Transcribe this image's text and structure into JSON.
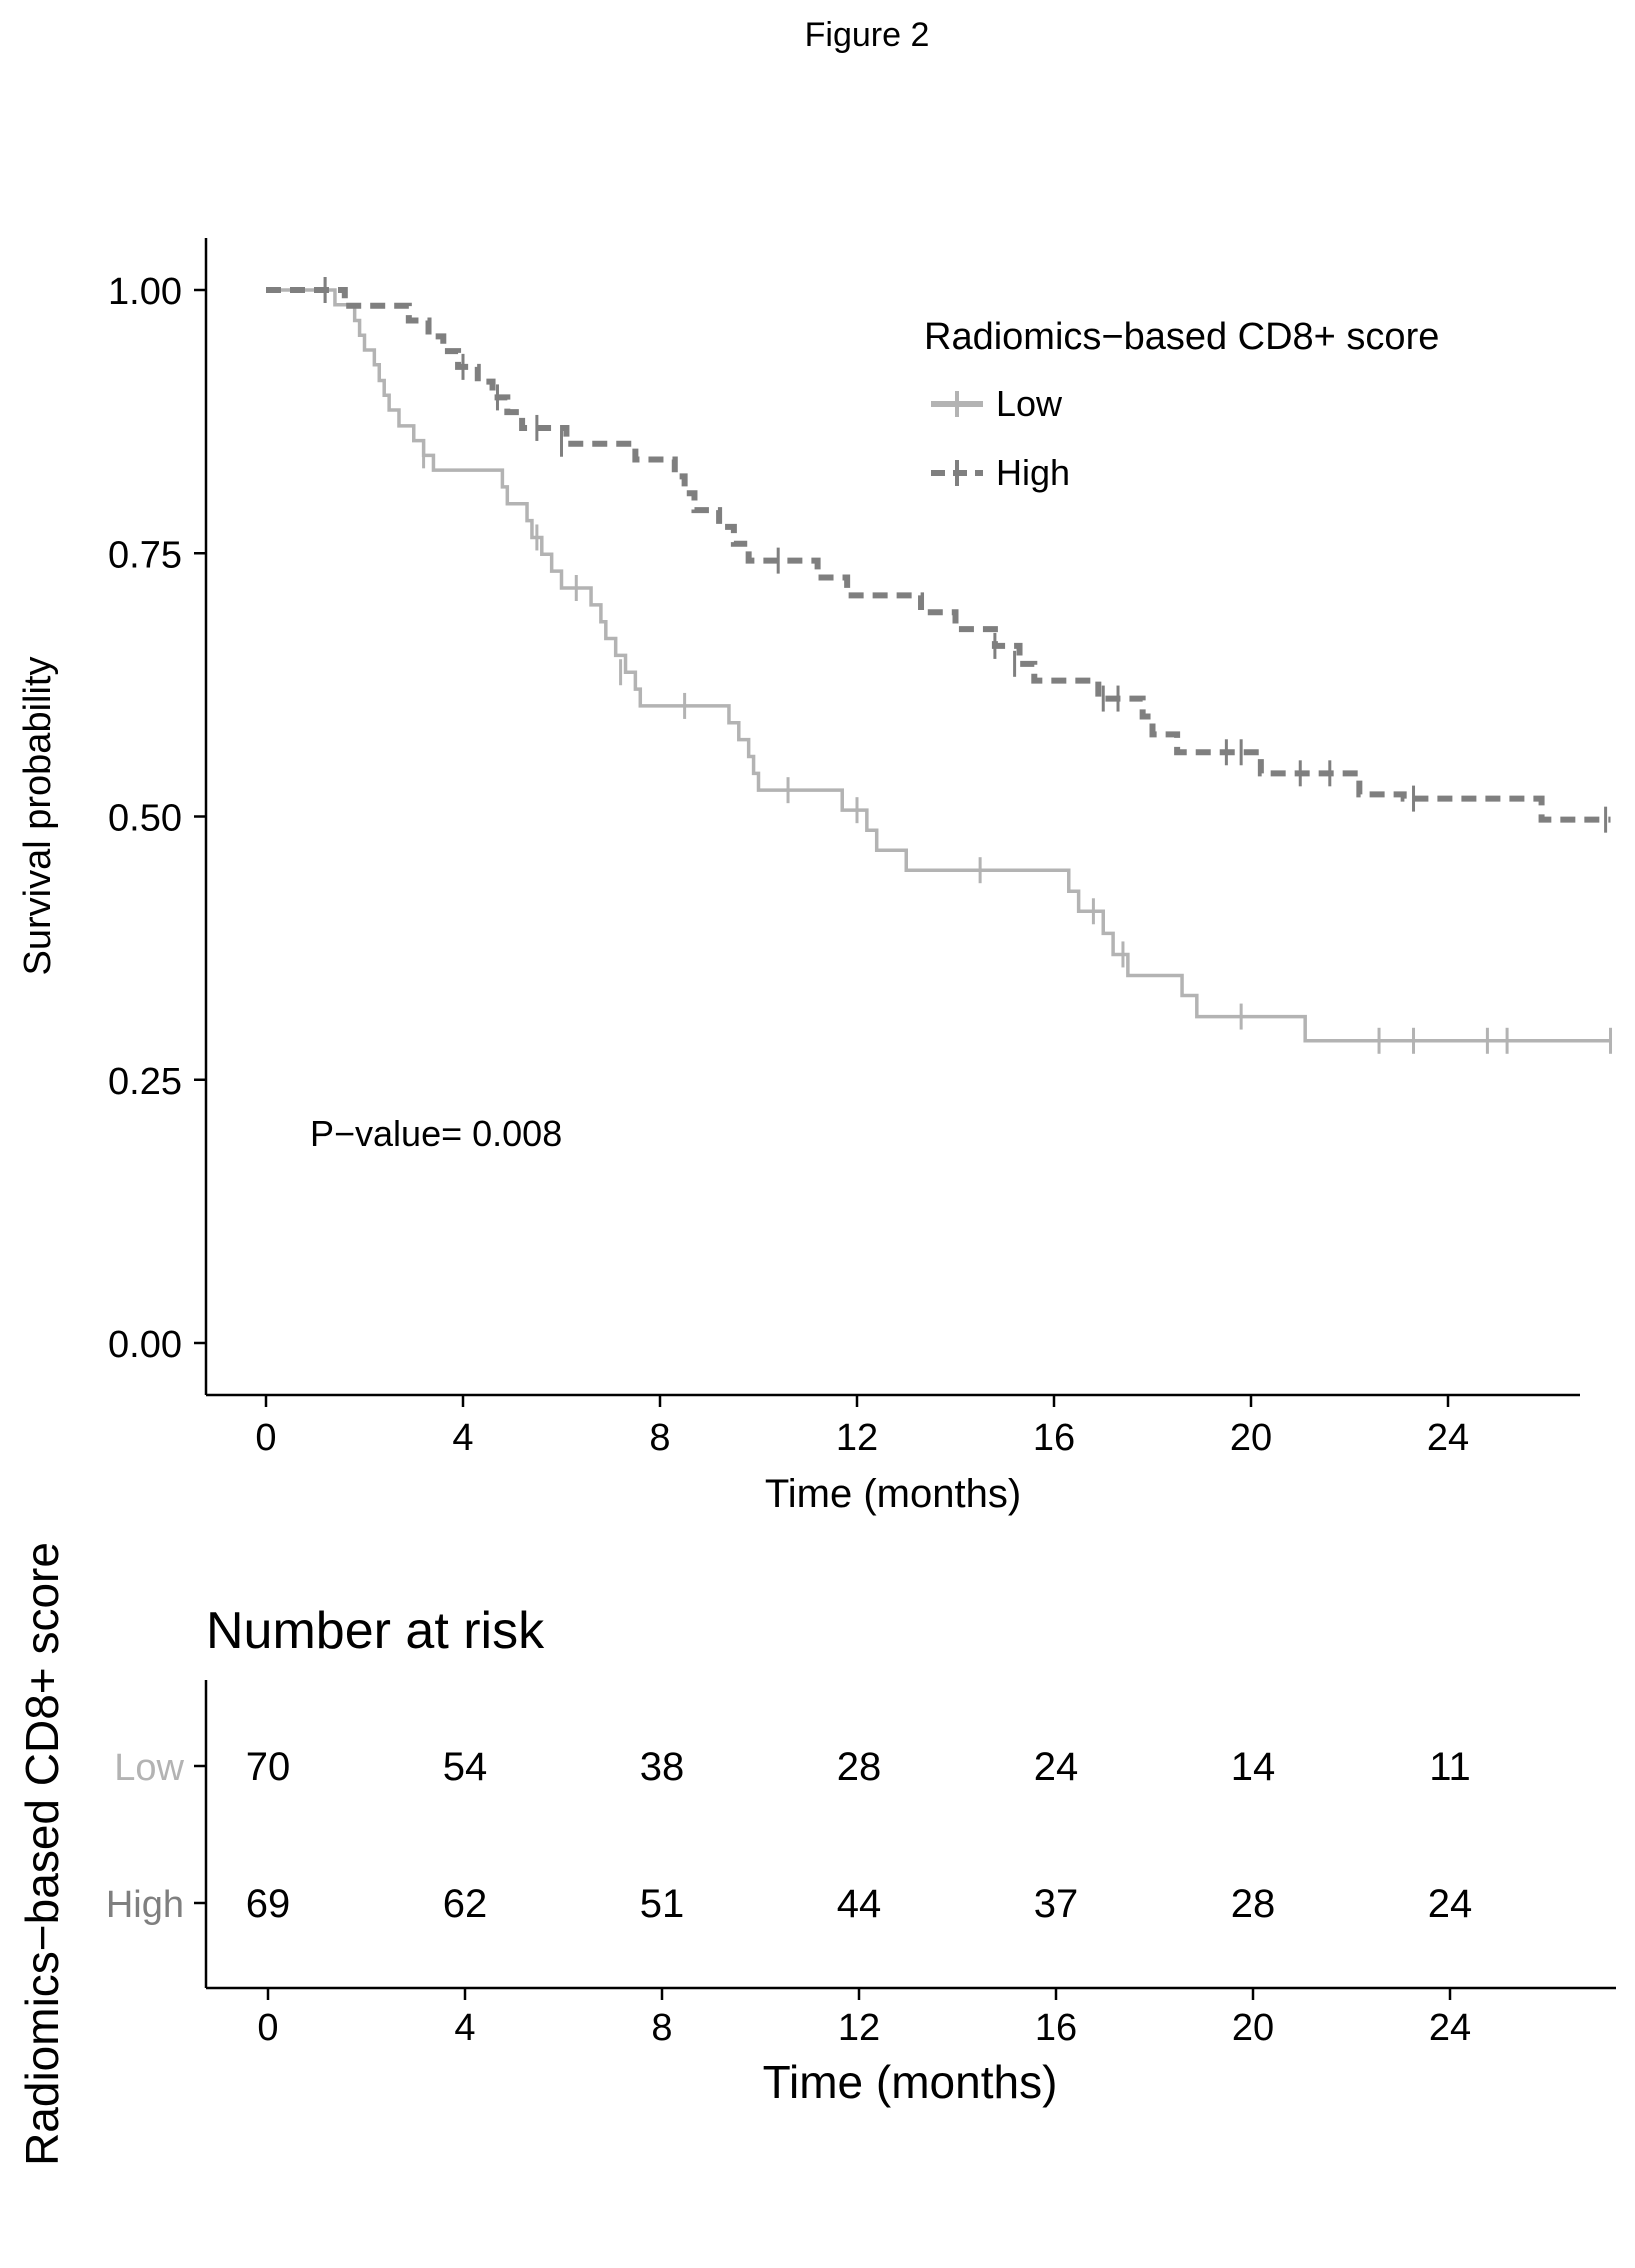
{
  "figure_label": "Figure 2",
  "colors": {
    "low": "#b3b3b3",
    "high": "#7f7f7f",
    "axis": "#000000",
    "text": "#000000"
  },
  "annotation": "P−value= 0.008",
  "risk_table": {
    "title": "Number at risk",
    "ylabel": "Radiomics−based CD8+ score",
    "xlabel": "Time (months)",
    "groups": [
      "Low",
      "High"
    ],
    "times": [
      0,
      4,
      8,
      12,
      16,
      20,
      24
    ],
    "rows": [
      {
        "group": "Low",
        "counts": [
          70,
          54,
          38,
          28,
          24,
          14,
          11
        ]
      },
      {
        "group": "High",
        "counts": [
          69,
          62,
          51,
          44,
          37,
          28,
          24
        ]
      }
    ]
  },
  "chart_data": {
    "type": "line",
    "xlabel": "Time (months)",
    "ylabel": "Survival probability",
    "xlim": [
      -1.3,
      27.3
    ],
    "ylim": [
      -0.05,
      1.05
    ],
    "xticks": [
      0,
      4,
      8,
      12,
      16,
      20,
      24
    ],
    "yticks": [
      0.0,
      0.25,
      0.5,
      0.75,
      1.0
    ],
    "ytick_labels": [
      "0.00",
      "0.25",
      "0.50",
      "0.75",
      "1.00"
    ],
    "grid": false,
    "legend": {
      "title": "Radiomics−based CD8+ score",
      "position": "top-right",
      "entries": [
        "Low",
        "High"
      ]
    },
    "series": [
      {
        "name": "Low",
        "line_style": "solid",
        "steps": [
          [
            0,
            1.0
          ],
          [
            1.4,
            0.986
          ],
          [
            1.8,
            0.971
          ],
          [
            1.9,
            0.957
          ],
          [
            2.0,
            0.943
          ],
          [
            2.2,
            0.929
          ],
          [
            2.3,
            0.914
          ],
          [
            2.4,
            0.9
          ],
          [
            2.5,
            0.886
          ],
          [
            2.7,
            0.871
          ],
          [
            3.0,
            0.857
          ],
          [
            3.2,
            0.843
          ],
          [
            3.4,
            0.829
          ],
          [
            4.8,
            0.813
          ],
          [
            4.9,
            0.797
          ],
          [
            5.3,
            0.781
          ],
          [
            5.4,
            0.765
          ],
          [
            5.6,
            0.749
          ],
          [
            5.8,
            0.733
          ],
          [
            6.0,
            0.717
          ],
          [
            6.6,
            0.701
          ],
          [
            6.8,
            0.685
          ],
          [
            6.9,
            0.669
          ],
          [
            7.1,
            0.653
          ],
          [
            7.3,
            0.637
          ],
          [
            7.5,
            0.621
          ],
          [
            7.6,
            0.605
          ],
          [
            9.4,
            0.589
          ],
          [
            9.6,
            0.573
          ],
          [
            9.8,
            0.557
          ],
          [
            9.9,
            0.541
          ],
          [
            10.0,
            0.525
          ],
          [
            11.7,
            0.506
          ],
          [
            12.2,
            0.487
          ],
          [
            12.4,
            0.468
          ],
          [
            13.0,
            0.449
          ],
          [
            16.3,
            0.429
          ],
          [
            16.5,
            0.41
          ],
          [
            17.0,
            0.389
          ],
          [
            17.2,
            0.369
          ],
          [
            17.5,
            0.349
          ],
          [
            18.6,
            0.33
          ],
          [
            18.9,
            0.31
          ],
          [
            21.1,
            0.287
          ],
          [
            27.3,
            0.287
          ]
        ],
        "censored": [
          [
            1.2,
            1.0
          ],
          [
            3.2,
            0.843
          ],
          [
            5.5,
            0.765
          ],
          [
            6.3,
            0.717
          ],
          [
            7.2,
            0.637
          ],
          [
            8.5,
            0.605
          ],
          [
            10.6,
            0.525
          ],
          [
            12.0,
            0.506
          ],
          [
            14.5,
            0.449
          ],
          [
            16.8,
            0.41
          ],
          [
            17.4,
            0.369
          ],
          [
            19.8,
            0.31
          ],
          [
            22.6,
            0.287
          ],
          [
            23.3,
            0.287
          ],
          [
            24.8,
            0.287
          ],
          [
            25.2,
            0.287
          ],
          [
            27.3,
            0.287
          ]
        ]
      },
      {
        "name": "High",
        "line_style": "dashed",
        "steps": [
          [
            0,
            1.0
          ],
          [
            1.6,
            0.985
          ],
          [
            2.9,
            0.971
          ],
          [
            3.3,
            0.956
          ],
          [
            3.6,
            0.942
          ],
          [
            3.9,
            0.927
          ],
          [
            4.3,
            0.913
          ],
          [
            4.6,
            0.898
          ],
          [
            4.9,
            0.884
          ],
          [
            5.2,
            0.869
          ],
          [
            6.1,
            0.854
          ],
          [
            7.5,
            0.839
          ],
          [
            8.3,
            0.823
          ],
          [
            8.5,
            0.807
          ],
          [
            8.7,
            0.791
          ],
          [
            9.2,
            0.775
          ],
          [
            9.5,
            0.759
          ],
          [
            9.8,
            0.743
          ],
          [
            11.2,
            0.727
          ],
          [
            11.8,
            0.71
          ],
          [
            13.3,
            0.694
          ],
          [
            14.0,
            0.678
          ],
          [
            14.8,
            0.662
          ],
          [
            15.3,
            0.645
          ],
          [
            15.6,
            0.629
          ],
          [
            16.9,
            0.612
          ],
          [
            17.8,
            0.595
          ],
          [
            18.0,
            0.578
          ],
          [
            18.5,
            0.561
          ],
          [
            20.2,
            0.541
          ],
          [
            22.2,
            0.521
          ],
          [
            23.1,
            0.517
          ],
          [
            25.9,
            0.497
          ],
          [
            27.3,
            0.497
          ]
        ],
        "censored": [
          [
            1.2,
            1.0
          ],
          [
            4.0,
            0.927
          ],
          [
            4.7,
            0.898
          ],
          [
            5.5,
            0.869
          ],
          [
            6.0,
            0.854
          ],
          [
            10.4,
            0.743
          ],
          [
            14.8,
            0.662
          ],
          [
            15.2,
            0.645
          ],
          [
            17.0,
            0.612
          ],
          [
            17.3,
            0.612
          ],
          [
            19.5,
            0.561
          ],
          [
            19.8,
            0.561
          ],
          [
            21.0,
            0.541
          ],
          [
            21.6,
            0.541
          ],
          [
            23.3,
            0.517
          ],
          [
            27.2,
            0.497
          ]
        ]
      }
    ]
  }
}
